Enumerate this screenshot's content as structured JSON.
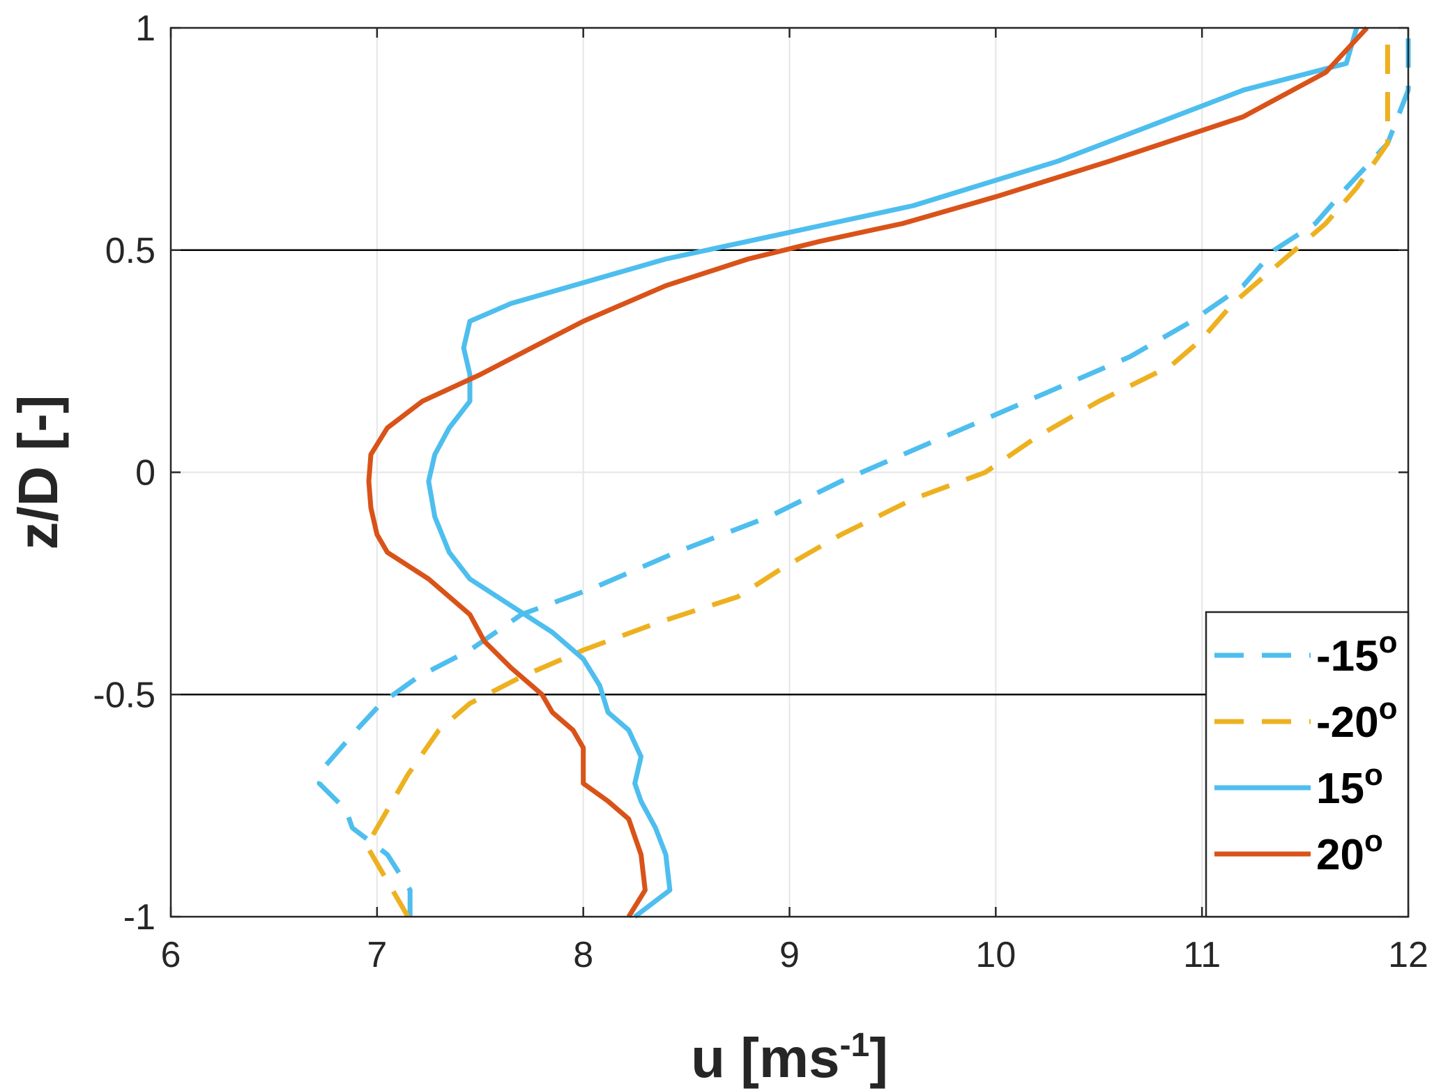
{
  "chart_data": {
    "type": "line",
    "xlabel": "u [ms",
    "xlabel_sup": "-1",
    "xlabel_end": "]",
    "ylabel": "z/D [-]",
    "xlim": [
      6,
      12
    ],
    "ylim": [
      -1,
      1
    ],
    "xticks": [
      "6",
      "7",
      "8",
      "9",
      "10",
      "11",
      "12"
    ],
    "yticks": [
      "-1",
      "-0.5",
      "0",
      "0.5",
      "1"
    ],
    "grid": true,
    "reference_lines_y": [
      -0.5,
      0.5
    ],
    "legend_position": "bottom-right",
    "series": [
      {
        "name": "-15",
        "name_sup": "o",
        "color": "#4DBEEE",
        "dash": true,
        "points": [
          [
            7.16,
            -1.0
          ],
          [
            7.16,
            -0.94
          ],
          [
            7.05,
            -0.86
          ],
          [
            6.88,
            -0.8
          ],
          [
            6.85,
            -0.76
          ],
          [
            6.72,
            -0.7
          ],
          [
            6.75,
            -0.66
          ],
          [
            6.9,
            -0.58
          ],
          [
            7.02,
            -0.52
          ],
          [
            7.2,
            -0.46
          ],
          [
            7.45,
            -0.4
          ],
          [
            7.7,
            -0.32
          ],
          [
            8.05,
            -0.26
          ],
          [
            8.45,
            -0.18
          ],
          [
            8.9,
            -0.1
          ],
          [
            9.25,
            -0.02
          ],
          [
            9.55,
            0.04
          ],
          [
            9.85,
            0.1
          ],
          [
            10.25,
            0.18
          ],
          [
            10.65,
            0.26
          ],
          [
            10.95,
            0.34
          ],
          [
            11.2,
            0.42
          ],
          [
            11.35,
            0.5
          ],
          [
            11.55,
            0.56
          ],
          [
            11.7,
            0.64
          ],
          [
            11.9,
            0.74
          ],
          [
            11.95,
            0.8
          ],
          [
            12.0,
            0.86
          ],
          [
            12.0,
            1.0
          ]
        ]
      },
      {
        "name": "-20",
        "name_sup": "o",
        "color": "#EDB120",
        "dash": true,
        "points": [
          [
            7.15,
            -1.0
          ],
          [
            7.05,
            -0.92
          ],
          [
            6.95,
            -0.84
          ],
          [
            7.05,
            -0.76
          ],
          [
            7.15,
            -0.68
          ],
          [
            7.3,
            -0.58
          ],
          [
            7.45,
            -0.52
          ],
          [
            7.7,
            -0.46
          ],
          [
            8.0,
            -0.4
          ],
          [
            8.35,
            -0.34
          ],
          [
            8.75,
            -0.28
          ],
          [
            8.95,
            -0.22
          ],
          [
            9.25,
            -0.14
          ],
          [
            9.6,
            -0.06
          ],
          [
            9.95,
            0.0
          ],
          [
            10.2,
            0.08
          ],
          [
            10.5,
            0.16
          ],
          [
            10.85,
            0.24
          ],
          [
            11.0,
            0.3
          ],
          [
            11.15,
            0.38
          ],
          [
            11.3,
            0.44
          ],
          [
            11.45,
            0.5
          ],
          [
            11.6,
            0.56
          ],
          [
            11.75,
            0.64
          ],
          [
            11.9,
            0.74
          ],
          [
            11.9,
            0.86
          ],
          [
            11.9,
            1.0
          ]
        ]
      },
      {
        "name": "15",
        "name_sup": "o",
        "color": "#4DBEEE",
        "dash": false,
        "points": [
          [
            8.25,
            -1.0
          ],
          [
            8.42,
            -0.94
          ],
          [
            8.4,
            -0.86
          ],
          [
            8.35,
            -0.8
          ],
          [
            8.28,
            -0.74
          ],
          [
            8.25,
            -0.7
          ],
          [
            8.28,
            -0.64
          ],
          [
            8.22,
            -0.58
          ],
          [
            8.12,
            -0.54
          ],
          [
            8.08,
            -0.48
          ],
          [
            8.0,
            -0.42
          ],
          [
            7.85,
            -0.36
          ],
          [
            7.65,
            -0.3
          ],
          [
            7.45,
            -0.24
          ],
          [
            7.35,
            -0.18
          ],
          [
            7.28,
            -0.1
          ],
          [
            7.25,
            -0.02
          ],
          [
            7.28,
            0.04
          ],
          [
            7.35,
            0.1
          ],
          [
            7.45,
            0.16
          ],
          [
            7.45,
            0.22
          ],
          [
            7.42,
            0.28
          ],
          [
            7.45,
            0.34
          ],
          [
            7.65,
            0.38
          ],
          [
            7.95,
            0.42
          ],
          [
            8.4,
            0.48
          ],
          [
            9.0,
            0.54
          ],
          [
            9.6,
            0.6
          ],
          [
            10.3,
            0.7
          ],
          [
            11.2,
            0.86
          ],
          [
            11.7,
            0.92
          ],
          [
            11.75,
            1.0
          ]
        ]
      },
      {
        "name": "20",
        "name_sup": "o",
        "color": "#D95319",
        "dash": false,
        "points": [
          [
            8.22,
            -1.0
          ],
          [
            8.3,
            -0.94
          ],
          [
            8.28,
            -0.86
          ],
          [
            8.22,
            -0.78
          ],
          [
            8.12,
            -0.74
          ],
          [
            8.0,
            -0.7
          ],
          [
            8.0,
            -0.62
          ],
          [
            7.95,
            -0.58
          ],
          [
            7.85,
            -0.54
          ],
          [
            7.8,
            -0.5
          ],
          [
            7.65,
            -0.44
          ],
          [
            7.52,
            -0.38
          ],
          [
            7.45,
            -0.32
          ],
          [
            7.25,
            -0.24
          ],
          [
            7.05,
            -0.18
          ],
          [
            7.0,
            -0.14
          ],
          [
            6.97,
            -0.08
          ],
          [
            6.96,
            -0.02
          ],
          [
            6.97,
            0.04
          ],
          [
            7.05,
            0.1
          ],
          [
            7.22,
            0.16
          ],
          [
            7.5,
            0.22
          ],
          [
            7.75,
            0.28
          ],
          [
            8.0,
            0.34
          ],
          [
            8.4,
            0.42
          ],
          [
            8.8,
            0.48
          ],
          [
            9.15,
            0.52
          ],
          [
            9.55,
            0.56
          ],
          [
            10.0,
            0.62
          ],
          [
            10.55,
            0.7
          ],
          [
            11.2,
            0.8
          ],
          [
            11.6,
            0.9
          ],
          [
            11.8,
            1.0
          ]
        ]
      }
    ]
  }
}
